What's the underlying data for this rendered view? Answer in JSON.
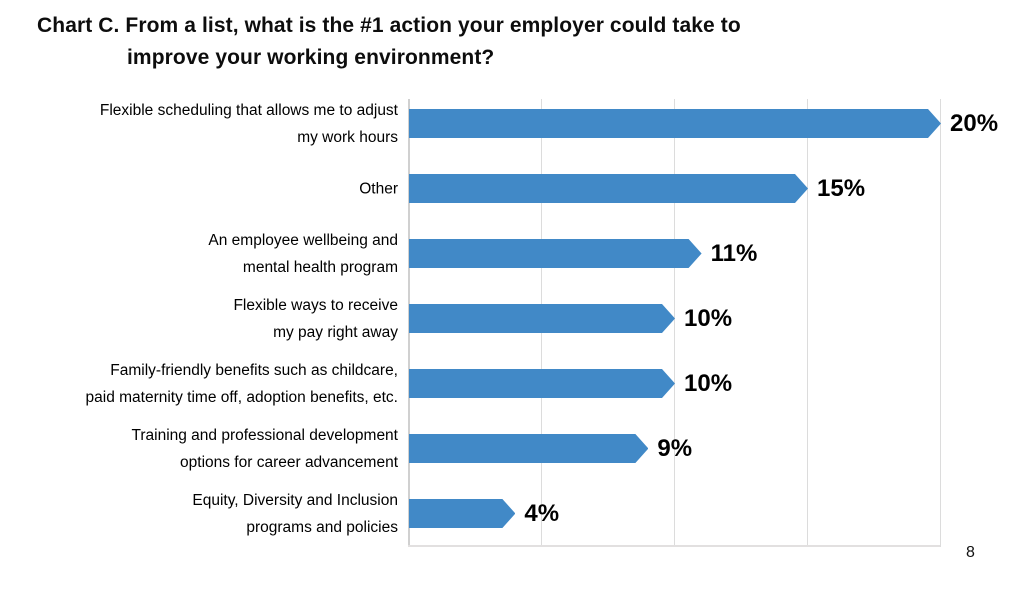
{
  "page": {
    "background": "#ffffff",
    "page_number": "8"
  },
  "title": {
    "line1": "Chart C. From a list, what is the #1 action your employer could take to",
    "line2": "improve your working environment?"
  },
  "chart_data": {
    "type": "bar",
    "orientation": "horizontal",
    "title": "Chart C. From a list, what is the #1 action your employer could take to improve your working environment?",
    "xlabel": "",
    "ylabel": "",
    "xlim": [
      0,
      20
    ],
    "gridline_step": 5,
    "grid": true,
    "legend": false,
    "bar_color": "#4189C7",
    "gridline_color": "#DCDCDC",
    "categories": [
      "Flexible scheduling that allows me to adjust my work hours",
      "Other",
      "An employee wellbeing and mental health program",
      "Flexible ways to receive my pay right away",
      "Family-friendly benefits such as childcare, paid maternity time off, adoption benefits, etc.",
      "Training and professional development options for career advancement",
      "Equity, Diversity and Inclusion programs and policies"
    ],
    "category_lines": [
      [
        "Flexible scheduling that allows me to adjust",
        "my work hours"
      ],
      [
        "Other"
      ],
      [
        "An employee wellbeing and",
        "mental health program"
      ],
      [
        "Flexible ways to receive",
        "my pay right away"
      ],
      [
        "Family-friendly benefits such as childcare,",
        "paid maternity time off, adoption benefits, etc."
      ],
      [
        "Training and professional development",
        "options for career advancement"
      ],
      [
        "Equity, Diversity and Inclusion",
        "programs and policies"
      ]
    ],
    "values": [
      20,
      15,
      11,
      10,
      10,
      9,
      4
    ],
    "value_labels": [
      "20%",
      "15%",
      "11%",
      "10%",
      "10%",
      "9%",
      "4%"
    ]
  }
}
